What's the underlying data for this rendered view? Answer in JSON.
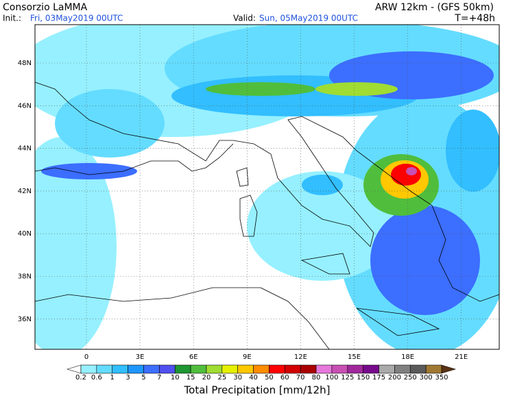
{
  "header": {
    "title": "Consorzio LaMMA",
    "model": "ARW 12km - (GFS 50km)",
    "init_label": "Init.:",
    "init_value": "Fri, 03May2019 00UTC",
    "valid_label": "Valid:",
    "valid_value": "Sun, 05May2019 00UTC",
    "lead": "T=+48h"
  },
  "map": {
    "lat_labels": [
      "48N",
      "46N",
      "44N",
      "42N",
      "40N",
      "38N",
      "36N"
    ],
    "lon_labels": [
      "0",
      "3E",
      "6E",
      "9E",
      "12E",
      "15E",
      "18E",
      "21E"
    ]
  },
  "colorbar": {
    "title": "Total Precipitation [mm/12h]",
    "labels": [
      "0.2",
      "0.6",
      "1",
      "3",
      "5",
      "7",
      "10",
      "15",
      "20",
      "25",
      "30",
      "40",
      "50",
      "60",
      "70",
      "80",
      "100",
      "125",
      "150",
      "175",
      "200",
      "250",
      "300",
      "350"
    ],
    "colors": [
      "#ffffff",
      "#96f0ff",
      "#64dcff",
      "#32beff",
      "#1e96ff",
      "#3c6eff",
      "#5050f0",
      "#1e9632",
      "#50be3c",
      "#a0dc32",
      "#e6f000",
      "#ffc800",
      "#ff8c00",
      "#ff0000",
      "#d20000",
      "#aa0000",
      "#e678dc",
      "#c850b4",
      "#a0289b",
      "#780a8c",
      "#aaaaaa",
      "#808080",
      "#5a5a5a",
      "#a07832",
      "#5a3214"
    ]
  }
}
